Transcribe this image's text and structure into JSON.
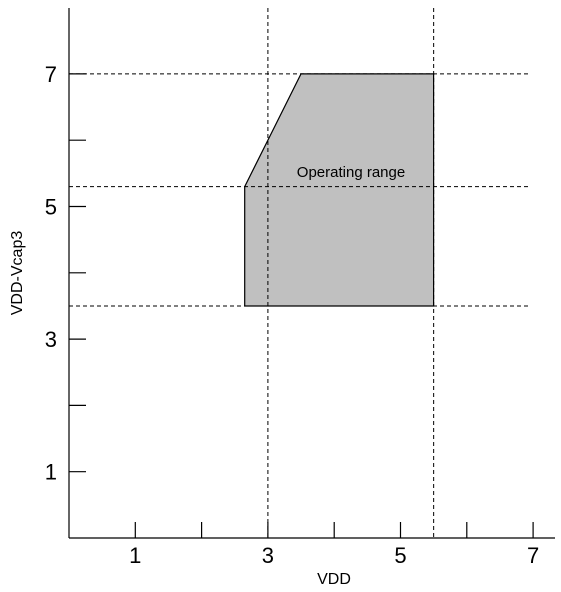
{
  "chart_data": {
    "type": "area",
    "title": "",
    "xlabel": "VDD",
    "ylabel": "VDD-Vcap3",
    "xlim": [
      0,
      7
    ],
    "ylim": [
      0,
      8
    ],
    "x_ticks": [
      1,
      2,
      3,
      4,
      5,
      6,
      7
    ],
    "x_tick_labels": [
      "1",
      "",
      "3",
      "",
      "5",
      "",
      "7"
    ],
    "y_ticks": [
      1,
      2,
      3,
      4,
      5,
      6,
      7
    ],
    "y_tick_labels": [
      "1",
      "",
      "3",
      "",
      "5",
      "",
      "7"
    ],
    "grid": false,
    "reference_lines": {
      "vertical": [
        3.0,
        5.5
      ],
      "horizontal": [
        3.5,
        5.3,
        7.0
      ]
    },
    "region": {
      "label": "Operating range",
      "fill_color": "#c0c0c0",
      "points": [
        [
          2.65,
          3.5
        ],
        [
          5.5,
          3.5
        ],
        [
          5.5,
          7.0
        ],
        [
          3.5,
          7.0
        ],
        [
          2.65,
          5.3
        ]
      ]
    }
  }
}
